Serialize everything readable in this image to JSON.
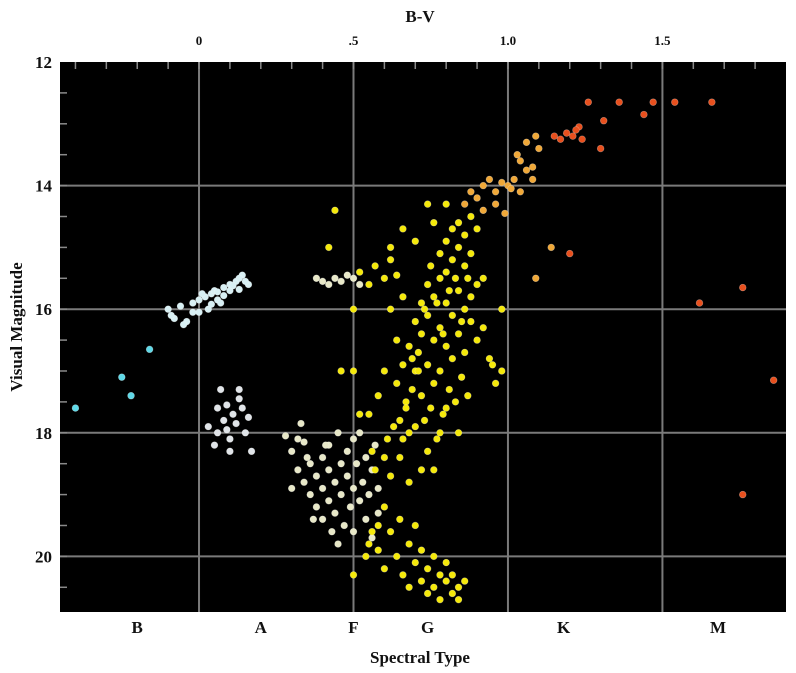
{
  "chart_data": {
    "type": "scatter",
    "title": "",
    "top_axis": {
      "label": "B-V",
      "range": [
        -0.45,
        1.9
      ],
      "ticks": [
        {
          "value": 0,
          "label": "0"
        },
        {
          "value": 0.5,
          "label": ".5"
        },
        {
          "value": 1.0,
          "label": "1.0"
        },
        {
          "value": 1.5,
          "label": "1.5"
        }
      ]
    },
    "y_axis": {
      "label": "Visual Magnitude",
      "range": [
        12,
        20.9
      ],
      "inverted": true,
      "ticks": [
        {
          "value": 12,
          "label": "12"
        },
        {
          "value": 14,
          "label": "14"
        },
        {
          "value": 16,
          "label": "16"
        },
        {
          "value": 18,
          "label": "18"
        },
        {
          "value": 20,
          "label": "20"
        }
      ]
    },
    "bottom_axis": {
      "label": "Spectral Type",
      "categories": [
        {
          "value": -0.2,
          "label": "B"
        },
        {
          "value": 0.2,
          "label": "A"
        },
        {
          "value": 0.5,
          "label": "F"
        },
        {
          "value": 0.74,
          "label": "G"
        },
        {
          "value": 1.18,
          "label": "K"
        },
        {
          "value": 1.68,
          "label": "M"
        }
      ]
    },
    "grid": true,
    "background": "#000000",
    "gridline_color": "#7a7a7a",
    "series": [
      {
        "color": "#5fd9e8",
        "points": [
          [
            -0.4,
            17.6
          ],
          [
            -0.25,
            17.1
          ],
          [
            -0.22,
            17.4
          ],
          [
            -0.16,
            16.65
          ]
        ]
      },
      {
        "color": "#d8f0f4",
        "points": [
          [
            -0.1,
            16.0
          ],
          [
            -0.08,
            16.15
          ],
          [
            -0.06,
            15.95
          ],
          [
            -0.04,
            16.2
          ],
          [
            -0.02,
            15.9
          ],
          [
            0.0,
            16.05
          ],
          [
            0.02,
            15.8
          ],
          [
            0.04,
            15.75
          ],
          [
            0.06,
            15.85
          ],
          [
            0.08,
            15.65
          ],
          [
            0.1,
            15.7
          ],
          [
            0.12,
            15.55
          ],
          [
            0.14,
            15.45
          ],
          [
            0.16,
            15.6
          ],
          [
            -0.09,
            16.1
          ],
          [
            -0.05,
            16.25
          ],
          [
            0.0,
            15.85
          ],
          [
            0.03,
            16.0
          ],
          [
            0.05,
            15.7
          ],
          [
            0.07,
            15.9
          ],
          [
            0.1,
            15.6
          ],
          [
            0.13,
            15.5
          ],
          [
            0.15,
            15.55
          ],
          [
            -0.02,
            16.05
          ],
          [
            0.01,
            15.75
          ],
          [
            0.04,
            15.92
          ],
          [
            0.08,
            15.78
          ],
          [
            0.11,
            15.62
          ],
          [
            0.13,
            15.68
          ],
          [
            0.06,
            15.72
          ]
        ]
      },
      {
        "color": "#e0e4e8",
        "points": [
          [
            0.03,
            17.9
          ],
          [
            0.05,
            18.2
          ],
          [
            0.06,
            17.6
          ],
          [
            0.07,
            17.3
          ],
          [
            0.08,
            17.8
          ],
          [
            0.09,
            17.55
          ],
          [
            0.1,
            18.1
          ],
          [
            0.11,
            17.7
          ],
          [
            0.12,
            17.85
          ],
          [
            0.13,
            17.3
          ],
          [
            0.14,
            17.6
          ],
          [
            0.15,
            18.0
          ],
          [
            0.16,
            17.75
          ],
          [
            0.17,
            18.3
          ],
          [
            0.1,
            18.3
          ],
          [
            0.06,
            18.0
          ],
          [
            0.13,
            17.45
          ],
          [
            0.09,
            17.95
          ]
        ]
      },
      {
        "color": "#e8e8c8",
        "points": [
          [
            0.28,
            18.05
          ],
          [
            0.3,
            18.3
          ],
          [
            0.32,
            18.1
          ],
          [
            0.34,
            18.15
          ],
          [
            0.33,
            17.85
          ],
          [
            0.3,
            18.9
          ],
          [
            0.32,
            18.6
          ],
          [
            0.34,
            18.8
          ],
          [
            0.36,
            18.5
          ],
          [
            0.36,
            19.0
          ],
          [
            0.38,
            18.7
          ],
          [
            0.38,
            19.2
          ],
          [
            0.4,
            18.4
          ],
          [
            0.4,
            18.9
          ],
          [
            0.4,
            19.4
          ],
          [
            0.42,
            18.6
          ],
          [
            0.42,
            19.1
          ],
          [
            0.42,
            18.2
          ],
          [
            0.44,
            18.8
          ],
          [
            0.44,
            19.3
          ],
          [
            0.45,
            18.0
          ],
          [
            0.46,
            18.5
          ],
          [
            0.46,
            19.0
          ],
          [
            0.47,
            19.5
          ],
          [
            0.48,
            18.3
          ],
          [
            0.48,
            18.7
          ],
          [
            0.49,
            19.2
          ],
          [
            0.5,
            18.1
          ],
          [
            0.5,
            18.9
          ],
          [
            0.5,
            19.6
          ],
          [
            0.51,
            18.5
          ],
          [
            0.52,
            19.1
          ],
          [
            0.52,
            18.0
          ],
          [
            0.53,
            18.8
          ],
          [
            0.54,
            19.4
          ],
          [
            0.54,
            18.4
          ],
          [
            0.55,
            19.0
          ],
          [
            0.56,
            18.6
          ],
          [
            0.56,
            19.7
          ],
          [
            0.57,
            18.2
          ],
          [
            0.58,
            18.9
          ],
          [
            0.58,
            19.3
          ],
          [
            0.38,
            15.5
          ],
          [
            0.4,
            15.55
          ],
          [
            0.42,
            15.6
          ],
          [
            0.44,
            15.5
          ],
          [
            0.46,
            15.55
          ],
          [
            0.48,
            15.45
          ],
          [
            0.5,
            15.5
          ],
          [
            0.52,
            15.6
          ],
          [
            0.41,
            18.2
          ],
          [
            0.43,
            19.6
          ],
          [
            0.45,
            19.8
          ],
          [
            0.37,
            19.4
          ],
          [
            0.35,
            18.4
          ]
        ]
      },
      {
        "color": "#f5e90a",
        "points": [
          [
            0.52,
            15.4
          ],
          [
            0.55,
            15.6
          ],
          [
            0.57,
            15.3
          ],
          [
            0.6,
            15.5
          ],
          [
            0.62,
            15.2
          ],
          [
            0.64,
            15.45
          ],
          [
            0.5,
            16.0
          ],
          [
            0.5,
            17.0
          ],
          [
            0.52,
            17.7
          ],
          [
            0.44,
            14.4
          ],
          [
            0.42,
            15.0
          ],
          [
            0.46,
            17.0
          ],
          [
            0.55,
            17.7
          ],
          [
            0.56,
            18.3
          ],
          [
            0.57,
            18.6
          ],
          [
            0.6,
            18.4
          ],
          [
            0.62,
            18.7
          ],
          [
            0.58,
            19.9
          ],
          [
            0.6,
            20.2
          ],
          [
            0.62,
            19.6
          ],
          [
            0.64,
            20.0
          ],
          [
            0.65,
            19.4
          ],
          [
            0.66,
            20.3
          ],
          [
            0.68,
            19.8
          ],
          [
            0.68,
            20.5
          ],
          [
            0.7,
            20.1
          ],
          [
            0.7,
            19.5
          ],
          [
            0.72,
            20.4
          ],
          [
            0.72,
            19.9
          ],
          [
            0.74,
            20.6
          ],
          [
            0.74,
            20.2
          ],
          [
            0.76,
            20.0
          ],
          [
            0.76,
            20.5
          ],
          [
            0.78,
            20.3
          ],
          [
            0.78,
            20.7
          ],
          [
            0.8,
            20.4
          ],
          [
            0.8,
            20.1
          ],
          [
            0.82,
            20.6
          ],
          [
            0.82,
            20.3
          ],
          [
            0.84,
            20.5
          ],
          [
            0.84,
            20.7
          ],
          [
            0.86,
            20.4
          ],
          [
            0.64,
            17.2
          ],
          [
            0.65,
            17.8
          ],
          [
            0.66,
            18.1
          ],
          [
            0.66,
            16.9
          ],
          [
            0.67,
            17.5
          ],
          [
            0.68,
            16.6
          ],
          [
            0.68,
            18.0
          ],
          [
            0.69,
            17.3
          ],
          [
            0.7,
            16.2
          ],
          [
            0.7,
            17.0
          ],
          [
            0.7,
            17.9
          ],
          [
            0.71,
            16.7
          ],
          [
            0.72,
            15.9
          ],
          [
            0.72,
            16.4
          ],
          [
            0.72,
            17.4
          ],
          [
            0.73,
            17.8
          ],
          [
            0.74,
            15.6
          ],
          [
            0.74,
            16.1
          ],
          [
            0.74,
            16.9
          ],
          [
            0.75,
            17.6
          ],
          [
            0.75,
            15.3
          ],
          [
            0.76,
            15.8
          ],
          [
            0.76,
            16.5
          ],
          [
            0.76,
            17.2
          ],
          [
            0.77,
            18.1
          ],
          [
            0.78,
            15.1
          ],
          [
            0.78,
            15.5
          ],
          [
            0.78,
            16.3
          ],
          [
            0.78,
            17.0
          ],
          [
            0.79,
            17.7
          ],
          [
            0.8,
            14.9
          ],
          [
            0.8,
            15.4
          ],
          [
            0.8,
            15.9
          ],
          [
            0.8,
            16.6
          ],
          [
            0.81,
            17.3
          ],
          [
            0.82,
            14.7
          ],
          [
            0.82,
            15.2
          ],
          [
            0.82,
            16.1
          ],
          [
            0.82,
            16.8
          ],
          [
            0.83,
            17.5
          ],
          [
            0.84,
            14.6
          ],
          [
            0.84,
            15.0
          ],
          [
            0.84,
            15.7
          ],
          [
            0.84,
            16.4
          ],
          [
            0.85,
            17.1
          ],
          [
            0.86,
            14.8
          ],
          [
            0.86,
            15.3
          ],
          [
            0.86,
            16.0
          ],
          [
            0.86,
            16.7
          ],
          [
            0.87,
            15.5
          ],
          [
            0.88,
            14.5
          ],
          [
            0.88,
            15.1
          ],
          [
            0.88,
            15.8
          ],
          [
            0.88,
            16.2
          ],
          [
            0.9,
            14.7
          ],
          [
            0.9,
            15.6
          ],
          [
            0.9,
            16.5
          ],
          [
            0.62,
            15.0
          ],
          [
            0.66,
            14.7
          ],
          [
            0.7,
            14.9
          ],
          [
            0.74,
            14.3
          ],
          [
            0.76,
            14.6
          ],
          [
            0.8,
            14.3
          ],
          [
            0.72,
            18.6
          ],
          [
            0.68,
            18.8
          ],
          [
            0.74,
            18.3
          ],
          [
            0.78,
            18.0
          ],
          [
            0.76,
            18.6
          ],
          [
            0.8,
            17.6
          ],
          [
            0.84,
            18.0
          ],
          [
            0.62,
            16.0
          ],
          [
            0.64,
            16.5
          ],
          [
            0.6,
            17.0
          ],
          [
            0.66,
            15.8
          ],
          [
            0.58,
            17.4
          ],
          [
            0.92,
            15.5
          ],
          [
            0.92,
            16.3
          ],
          [
            0.94,
            16.8
          ],
          [
            0.95,
            16.9
          ],
          [
            0.96,
            17.2
          ],
          [
            0.98,
            16.0
          ],
          [
            0.98,
            17.0
          ],
          [
            0.5,
            20.3
          ],
          [
            0.55,
            19.8
          ],
          [
            0.54,
            20.0
          ],
          [
            0.58,
            19.5
          ],
          [
            0.56,
            19.6
          ],
          [
            0.6,
            19.2
          ],
          [
            0.87,
            17.4
          ],
          [
            0.73,
            16.0
          ],
          [
            0.77,
            15.9
          ],
          [
            0.79,
            16.4
          ],
          [
            0.81,
            15.7
          ],
          [
            0.83,
            15.5
          ],
          [
            0.85,
            16.2
          ],
          [
            0.71,
            17.0
          ],
          [
            0.69,
            16.8
          ],
          [
            0.67,
            17.6
          ],
          [
            0.65,
            18.4
          ],
          [
            0.63,
            17.9
          ],
          [
            0.61,
            18.1
          ]
        ]
      },
      {
        "color": "#f0a838",
        "points": [
          [
            0.86,
            14.3
          ],
          [
            0.88,
            14.1
          ],
          [
            0.9,
            14.2
          ],
          [
            0.92,
            14.0
          ],
          [
            0.94,
            13.9
          ],
          [
            0.96,
            14.1
          ],
          [
            0.98,
            13.95
          ],
          [
            1.0,
            14.0
          ],
          [
            1.02,
            13.9
          ],
          [
            1.04,
            13.6
          ],
          [
            1.06,
            13.3
          ],
          [
            1.08,
            13.7
          ],
          [
            1.1,
            13.4
          ],
          [
            1.08,
            13.9
          ],
          [
            1.06,
            13.75
          ],
          [
            1.04,
            14.1
          ],
          [
            0.92,
            14.4
          ],
          [
            0.96,
            14.3
          ],
          [
            0.99,
            14.45
          ],
          [
            1.01,
            14.05
          ],
          [
            1.03,
            13.5
          ],
          [
            1.09,
            13.2
          ],
          [
            1.14,
            15.0
          ],
          [
            1.09,
            15.5
          ]
        ]
      },
      {
        "color": "#e8501e",
        "points": [
          [
            1.15,
            13.2
          ],
          [
            1.17,
            13.25
          ],
          [
            1.19,
            13.15
          ],
          [
            1.21,
            13.2
          ],
          [
            1.23,
            13.05
          ],
          [
            1.24,
            13.25
          ],
          [
            1.26,
            12.65
          ],
          [
            1.3,
            13.4
          ],
          [
            1.31,
            12.95
          ],
          [
            1.36,
            12.65
          ],
          [
            1.44,
            12.85
          ],
          [
            1.47,
            12.65
          ],
          [
            1.54,
            12.65
          ],
          [
            1.66,
            12.65
          ],
          [
            1.2,
            15.1
          ],
          [
            1.62,
            15.9
          ],
          [
            1.76,
            15.65
          ],
          [
            1.76,
            19.0
          ],
          [
            1.86,
            17.15
          ],
          [
            1.22,
            13.1
          ]
        ]
      }
    ]
  }
}
